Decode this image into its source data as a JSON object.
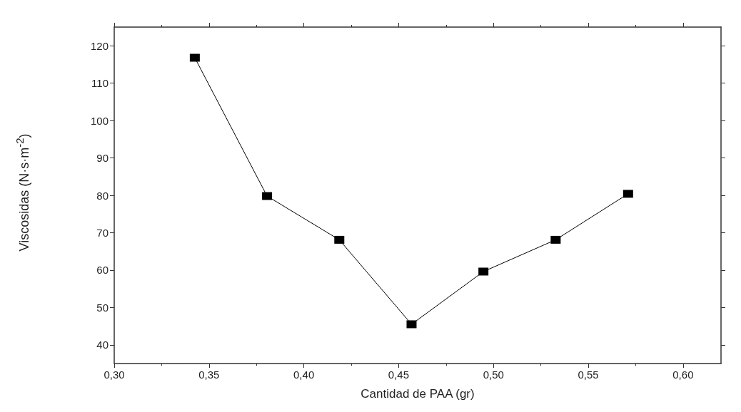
{
  "chart_data": {
    "type": "line",
    "xlabel": "Cantidad de PAA (gr)",
    "ylabel": "Viscosidas (N·s·m$^{-2}$)",
    "x": [
      0.3425,
      0.3806,
      0.4187,
      0.4568,
      0.4947,
      0.5328,
      0.571
    ],
    "series": [
      {
        "color": "#000000",
        "values": [
          116.8,
          79.8,
          68.1,
          45.5,
          59.6,
          68.1,
          80.4
        ]
      }
    ],
    "marker": "square",
    "line_style": "solid",
    "xlim": [
      0.3,
      0.62
    ],
    "ylim": [
      35,
      125
    ],
    "xticks": [
      {
        "value": 0.3,
        "label": "0,30"
      },
      {
        "value": 0.35,
        "label": "0,35"
      },
      {
        "value": 0.4,
        "label": "0,40"
      },
      {
        "value": 0.45,
        "label": "0,45"
      },
      {
        "value": 0.5,
        "label": "0,50"
      },
      {
        "value": 0.55,
        "label": "0,55"
      },
      {
        "value": 0.6,
        "label": "0,60"
      }
    ],
    "yticks": [
      40,
      50,
      60,
      70,
      80,
      90,
      100,
      110,
      120
    ]
  }
}
